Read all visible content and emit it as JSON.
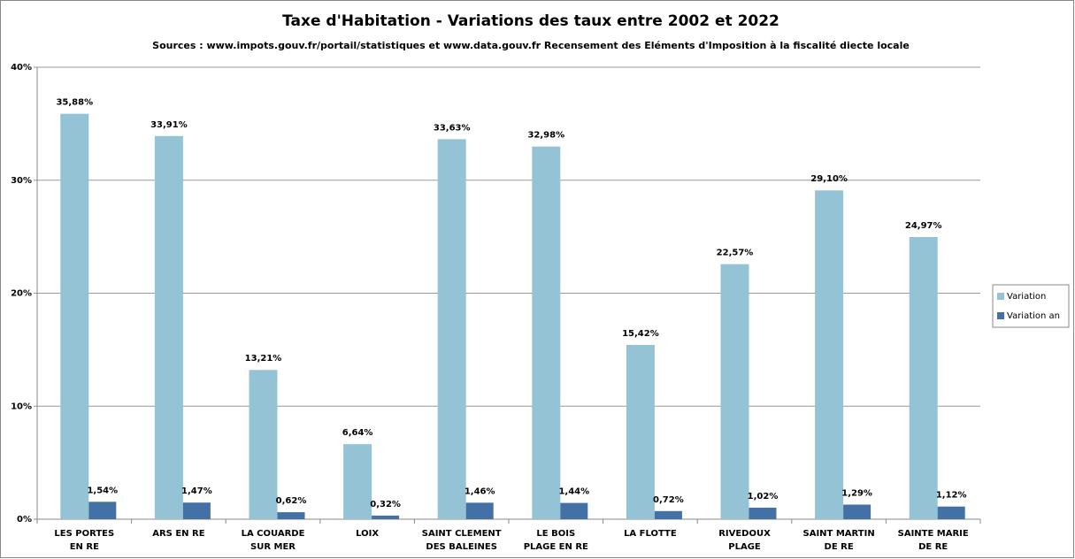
{
  "chart_data": {
    "type": "bar",
    "title": "Taxe d'Habitation - Variations des taux entre 2002 et 2022",
    "subtitle": "Sources : www.impots.gouv.fr/portail/statistiques et www.data.gouv.fr Recensement des Eléments d'Imposition à la fiscalité diecte locale",
    "categories": [
      "LES PORTES\nEN RE",
      "ARS EN RE",
      "LA COUARDE\nSUR MER",
      "LOIX",
      "SAINT CLEMENT\nDES BALEINES",
      "LE BOIS\nPLAGE EN RE",
      "LA FLOTTE",
      "RIVEDOUX\nPLAGE",
      "SAINT MARTIN\nDE RE",
      "SAINTE MARIE\nDE RE"
    ],
    "series": [
      {
        "name": "Variation",
        "color": "#93c3d4",
        "values": [
          35.88,
          33.91,
          13.21,
          6.64,
          33.63,
          32.98,
          15.42,
          22.57,
          29.1,
          24.97
        ],
        "value_labels": [
          "35,88%",
          "33,91%",
          "13,21%",
          "6,64%",
          "33,63%",
          "32,98%",
          "15,42%",
          "22,57%",
          "29,10%",
          "24,97%"
        ]
      },
      {
        "name": "Variation an",
        "color": "#4471a5",
        "values": [
          1.54,
          1.47,
          0.62,
          0.32,
          1.46,
          1.44,
          0.72,
          1.02,
          1.29,
          1.12
        ],
        "value_labels": [
          "1,54%",
          "1,47%",
          "0,62%",
          "0,32%",
          "1,46%",
          "1,44%",
          "0,72%",
          "1,02%",
          "1,29%",
          "1,12%"
        ]
      }
    ],
    "ylim": [
      0,
      40
    ],
    "yticks": [
      {
        "value": 0,
        "label": "0%"
      },
      {
        "value": 10,
        "label": "10%"
      },
      {
        "value": 20,
        "label": "20%"
      },
      {
        "value": 30,
        "label": "30%"
      },
      {
        "value": 40,
        "label": "40%"
      }
    ],
    "grid": true,
    "legend": "right"
  }
}
